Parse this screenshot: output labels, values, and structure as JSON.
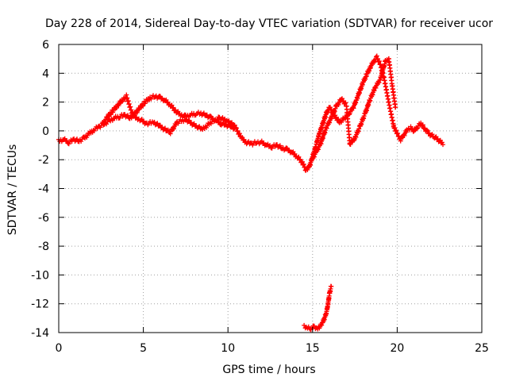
{
  "chart_data": {
    "type": "scatter",
    "title": "Day 228 of 2014, Sidereal Day-to-day VTEC variation (SDTVAR) for receiver ucor",
    "xlabel": "GPS time / hours",
    "ylabel": "SDTVAR / TECUs",
    "xlim": [
      0,
      25
    ],
    "ylim": [
      -14,
      6
    ],
    "xticks": [
      0,
      5,
      10,
      15,
      20,
      25
    ],
    "yticks": [
      6,
      4,
      2,
      0,
      -2,
      -4,
      -6,
      -8,
      -10,
      -12,
      -14
    ],
    "grid": true,
    "marker": "plus",
    "marker_color": "#ff0000",
    "series": [
      {
        "name": "main-trace",
        "x": [
          0.0,
          0.3,
          0.6,
          0.9,
          1.2,
          1.5,
          1.8,
          2.1,
          2.4,
          2.7,
          3.0,
          3.3,
          3.6,
          3.9,
          4.2,
          4.5,
          4.8,
          5.1,
          5.4,
          5.7,
          6.0,
          6.3,
          6.6,
          6.9,
          7.2,
          7.5,
          7.8,
          8.1,
          8.4,
          8.7,
          9.0,
          9.3,
          9.6,
          9.9,
          10.2,
          10.5,
          10.8,
          11.1,
          11.4,
          11.7,
          12.0,
          12.3,
          12.6,
          12.9,
          13.2,
          13.5,
          13.8,
          14.1,
          14.4,
          14.6,
          14.8,
          15.0,
          15.2,
          15.4,
          15.6,
          15.8,
          16.0,
          16.2,
          16.4,
          16.6,
          16.8,
          17.0,
          17.2,
          17.4,
          17.6,
          17.8,
          18.0,
          18.2,
          18.4,
          18.6,
          18.8,
          19.0,
          19.2,
          19.4,
          19.6,
          19.8,
          20.0,
          20.2,
          20.4,
          20.6,
          20.8,
          21.0,
          21.2,
          21.4,
          21.6,
          21.8,
          22.0,
          22.2,
          22.4,
          22.7
        ],
        "y": [
          -0.7,
          -0.6,
          -0.8,
          -0.6,
          -0.7,
          -0.5,
          -0.2,
          0.1,
          0.3,
          0.5,
          0.7,
          0.9,
          1.0,
          1.1,
          0.9,
          1.2,
          1.6,
          2.0,
          2.3,
          2.4,
          2.3,
          2.1,
          1.8,
          1.4,
          1.1,
          1.0,
          1.1,
          1.2,
          1.2,
          1.1,
          0.9,
          0.7,
          0.5,
          0.4,
          0.3,
          0.1,
          -0.5,
          -0.8,
          -0.9,
          -0.8,
          -0.8,
          -1.0,
          -1.1,
          -1.0,
          -1.2,
          -1.3,
          -1.5,
          -1.8,
          -2.2,
          -2.7,
          -2.5,
          -1.8,
          -1.0,
          -0.2,
          0.5,
          1.2,
          1.6,
          1.3,
          0.9,
          0.6,
          0.8,
          1.0,
          1.3,
          1.6,
          2.2,
          2.8,
          3.4,
          3.9,
          4.4,
          4.8,
          5.1,
          4.6,
          3.8,
          2.6,
          1.4,
          0.3,
          -0.2,
          -0.6,
          -0.3,
          0.1,
          0.2,
          0.0,
          0.3,
          0.5,
          0.2,
          -0.1,
          -0.3,
          -0.4,
          -0.6,
          -0.9
        ]
      },
      {
        "name": "secondary-trace-morning",
        "x": [
          2.6,
          2.9,
          3.2,
          3.5,
          3.8,
          4.0,
          4.4,
          4.8,
          5.2,
          5.6,
          6.0,
          6.4,
          6.6,
          7.0,
          7.5,
          8.0,
          8.5,
          9.0,
          9.5,
          10.0,
          10.4
        ],
        "y": [
          0.5,
          1.0,
          1.4,
          1.8,
          2.2,
          2.4,
          1.0,
          0.8,
          0.5,
          0.6,
          0.3,
          0.0,
          -0.1,
          0.6,
          0.8,
          0.4,
          0.1,
          0.6,
          0.9,
          0.7,
          0.3
        ]
      },
      {
        "name": "secondary-trace-afternoon",
        "x": [
          15.0,
          15.2,
          15.5,
          15.8,
          16.1,
          16.4,
          16.7,
          17.0,
          17.2,
          17.5,
          17.8,
          18.1,
          18.4,
          18.7,
          19.0,
          19.3,
          19.5,
          19.7,
          19.9
        ],
        "y": [
          -1.9,
          -1.5,
          -0.8,
          0.2,
          0.9,
          1.7,
          2.2,
          1.8,
          -0.9,
          -0.5,
          0.3,
          1.2,
          2.2,
          3.0,
          3.6,
          4.8,
          5.0,
          3.2,
          1.6
        ]
      },
      {
        "name": "low-outlier-trace",
        "x": [
          14.5,
          14.7,
          14.9,
          15.1,
          15.3,
          15.5,
          15.6,
          15.7,
          15.8,
          15.9,
          16.0,
          16.1
        ],
        "y": [
          -13.6,
          -13.7,
          -13.7,
          -13.6,
          -13.7,
          -13.5,
          -13.3,
          -13.0,
          -12.7,
          -12.1,
          -11.3,
          -10.8
        ]
      }
    ]
  }
}
